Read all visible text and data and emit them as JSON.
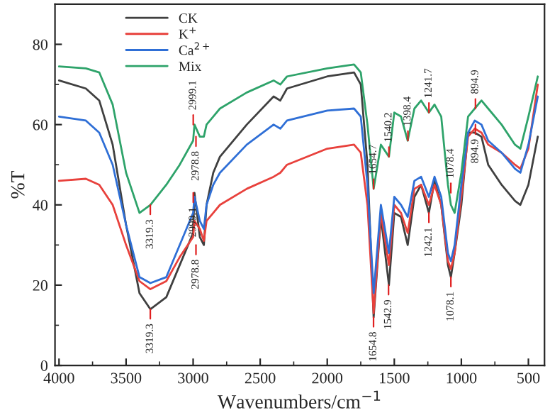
{
  "chart_data": {
    "type": "line",
    "xlabel": "Wavenumbers/cm$^{−1}$",
    "ylabel": "%T",
    "x": [
      4000,
      3800,
      3700,
      3600,
      3500,
      3400,
      3319,
      3200,
      3100,
      3000,
      2990,
      2950,
      2920,
      2900,
      2850,
      2800,
      2600,
      2400,
      2350,
      2300,
      2000,
      1800,
      1750,
      1700,
      1654,
      1600,
      1540,
      1500,
      1450,
      1400,
      1350,
      1300,
      1242,
      1200,
      1150,
      1100,
      1078,
      1050,
      1000,
      950,
      900,
      850,
      800,
      700,
      600,
      560,
      500,
      430
    ],
    "series": [
      {
        "name": "CK",
        "color": "#404040",
        "values": [
          71,
          69,
          66,
          55,
          35,
          18,
          14,
          17,
          25,
          33,
          43,
          32,
          30,
          40,
          48,
          52,
          60,
          67,
          66,
          69,
          72,
          73,
          70,
          50,
          12,
          37,
          20,
          38,
          37,
          30,
          42,
          45,
          38,
          46,
          40,
          25,
          22,
          28,
          40,
          58,
          58,
          57,
          50,
          45,
          41,
          40,
          45,
          57
        ]
      },
      {
        "name": "K$^{+}$",
        "color": "#e8413c",
        "values": [
          46,
          46.5,
          45,
          40,
          30,
          21,
          19,
          21,
          27,
          32,
          36,
          34,
          31,
          36,
          38,
          40,
          44,
          47,
          48,
          50,
          54,
          55,
          53,
          40,
          13,
          38,
          25,
          40,
          38,
          33,
          44,
          45,
          40,
          45,
          40,
          26,
          24,
          28,
          42,
          57,
          59,
          58,
          55,
          53,
          50,
          49,
          54,
          70
        ]
      },
      {
        "name": "Ca$^{2+}$",
        "color": "#2f6fd6",
        "values": [
          62,
          61,
          58,
          50,
          35,
          22,
          20.5,
          22,
          30,
          38,
          42,
          36,
          34,
          40,
          45,
          48,
          55,
          60,
          59,
          61,
          63.5,
          64,
          62,
          45,
          18,
          40,
          28,
          42,
          40,
          37,
          46,
          47,
          42,
          47,
          42,
          28,
          26,
          30,
          45,
          58,
          61,
          60,
          56,
          53,
          49,
          48,
          55,
          67
        ]
      },
      {
        "name": "Mix",
        "color": "#2ea36a",
        "values": [
          74.5,
          74,
          73,
          65,
          48,
          38,
          40,
          45,
          50,
          56,
          60,
          57,
          57,
          60,
          62,
          64,
          68,
          71,
          70,
          72,
          74,
          75,
          73,
          60,
          44,
          55,
          52,
          63,
          62,
          56,
          64,
          66,
          63,
          65,
          62,
          45,
          40,
          38,
          48,
          62,
          64,
          66,
          64,
          60,
          55,
          54,
          62,
          72
        ]
      }
    ],
    "xlim": [
      4030,
      380
    ],
    "xticks": [
      4000,
      3500,
      3000,
      2500,
      2000,
      1500,
      1000,
      500
    ],
    "ylim": [
      0,
      90
    ],
    "yticks": [
      0,
      20,
      40,
      60,
      80
    ],
    "legend": "top left",
    "annotations": [
      {
        "text": "3319.3",
        "x": 3319.3,
        "y": 40
      },
      {
        "text": "2999.1",
        "x": 2999.1,
        "y": 60
      },
      {
        "text": "2978.8",
        "x": 2978.8,
        "y": 57
      },
      {
        "text": "1654.7",
        "x": 1654.7,
        "y": 44
      },
      {
        "text": "1540.2",
        "x": 1540.2,
        "y": 52
      },
      {
        "text": "1398.4",
        "x": 1398.4,
        "y": 56
      },
      {
        "text": "1241.7",
        "x": 1241.7,
        "y": 63
      },
      {
        "text": "894.9",
        "x": 894.9,
        "y": 64
      },
      {
        "text": "3319.3",
        "x": 3319.3,
        "y": 14
      },
      {
        "text": "2999.1",
        "x": 2999.1,
        "y": 43
      },
      {
        "text": "2978.8",
        "x": 2978.8,
        "y": 30
      },
      {
        "text": "1654.8",
        "x": 1654.8,
        "y": 12
      },
      {
        "text": "1542.9",
        "x": 1542.9,
        "y": 20
      },
      {
        "text": "1242.1",
        "x": 1242.1,
        "y": 38
      },
      {
        "text": "1078.4",
        "x": 1078.4,
        "y": 43
      },
      {
        "text": "1078.1",
        "x": 1078.1,
        "y": 22
      },
      {
        "text": "894.9",
        "x": 894.9,
        "y": 60
      }
    ]
  }
}
